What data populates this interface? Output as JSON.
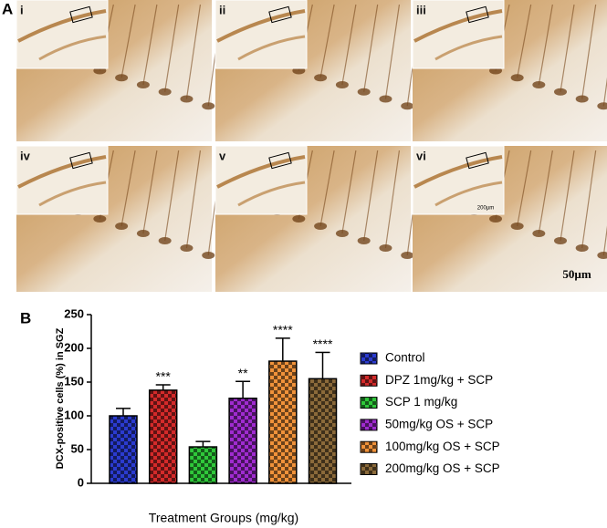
{
  "panel_a": {
    "label": "A",
    "images": [
      "i",
      "ii",
      "iii",
      "iv",
      "v",
      "vi"
    ],
    "scale_bar": "50µm",
    "inset_scale": "200µm"
  },
  "panel_b": {
    "label": "B"
  },
  "chart_data": {
    "type": "bar",
    "x_label": "Treatment Groups (mg/kg)",
    "y_label": "DCX-positive cells (%) in SGZ",
    "ylim": [
      0,
      250
    ],
    "yticks": [
      0,
      50,
      100,
      150,
      200,
      250
    ],
    "series": [
      {
        "name": "Control",
        "color": "#2b3bd0",
        "values": [
          100
        ],
        "errors": [
          11
        ]
      },
      {
        "name": "DPZ 1mg/kg + SCP",
        "color": "#d42a2a",
        "values": [
          138
        ],
        "errors": [
          8
        ],
        "significance": "***"
      },
      {
        "name": "SCP 1 mg/kg",
        "color": "#2fc83a",
        "values": [
          54
        ],
        "errors": [
          8
        ]
      },
      {
        "name": "50mg/kg OS + SCP",
        "color": "#a02bd0",
        "values": [
          126
        ],
        "errors": [
          25
        ],
        "significance": "**"
      },
      {
        "name": "100mg/kg OS + SCP",
        "color": "#f0923a",
        "values": [
          181
        ],
        "errors": [
          34
        ],
        "significance": "****"
      },
      {
        "name": "200mg/kg OS + SCP",
        "color": "#8b6a3a",
        "values": [
          155
        ],
        "errors": [
          39
        ],
        "significance": "****"
      }
    ]
  }
}
